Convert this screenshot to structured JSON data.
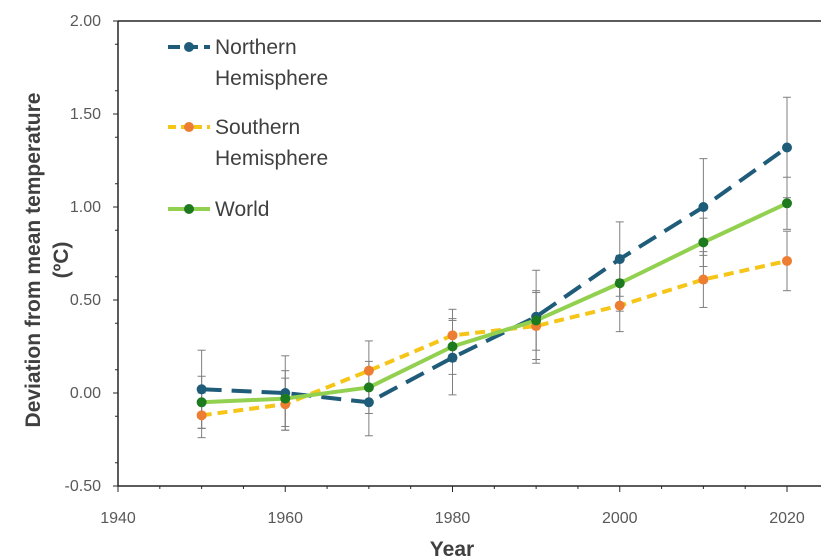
{
  "chart_data": {
    "type": "line",
    "title": "",
    "xlabel": "Year",
    "ylabel": [
      "Deviation from mean temperature",
      "(ºC)"
    ],
    "xlim": [
      1940,
      2020
    ],
    "ylim": [
      -0.5,
      2.0
    ],
    "x_ticks": [
      1940,
      1960,
      1980,
      2000,
      2020
    ],
    "y_ticks": [
      -0.5,
      0.0,
      0.5,
      1.0,
      1.5,
      2.0
    ],
    "x_tick_labels": [
      "1940",
      "1960",
      "1980",
      "2000",
      "2020"
    ],
    "y_tick_labels": [
      "-0.50",
      "0.00",
      "0.50",
      "1.00",
      "1.50",
      "2.00"
    ],
    "grid": false,
    "legend_position": "top-left",
    "x": [
      1950,
      1960,
      1970,
      1980,
      1990,
      2000,
      2010,
      2020
    ],
    "series": [
      {
        "name": [
          "Northern",
          "Hemisphere"
        ],
        "color": "#1f5c7a",
        "line_style": "dashed",
        "values": [
          0.02,
          0.0,
          -0.05,
          0.19,
          0.41,
          0.72,
          1.0,
          1.32
        ],
        "error": [
          0.21,
          0.2,
          0.18,
          0.2,
          0.25,
          0.2,
          0.26,
          0.27
        ]
      },
      {
        "name": [
          "Southern",
          "Hemisphere"
        ],
        "color": "#f5c518",
        "marker_color": "#ed7d31",
        "line_style": "dotted",
        "values": [
          -0.12,
          -0.06,
          0.12,
          0.31,
          0.36,
          0.47,
          0.61,
          0.71
        ],
        "error": [
          0.12,
          0.14,
          0.16,
          0.14,
          0.18,
          0.14,
          0.15,
          0.16
        ]
      },
      {
        "name": [
          "World"
        ],
        "color": "#92d050",
        "marker_color": "#1e7a1e",
        "line_style": "solid",
        "values": [
          -0.05,
          -0.03,
          0.03,
          0.25,
          0.39,
          0.59,
          0.81,
          1.02
        ],
        "error": [
          0.14,
          0.15,
          0.14,
          0.15,
          0.16,
          0.15,
          0.13,
          0.14
        ]
      }
    ]
  }
}
